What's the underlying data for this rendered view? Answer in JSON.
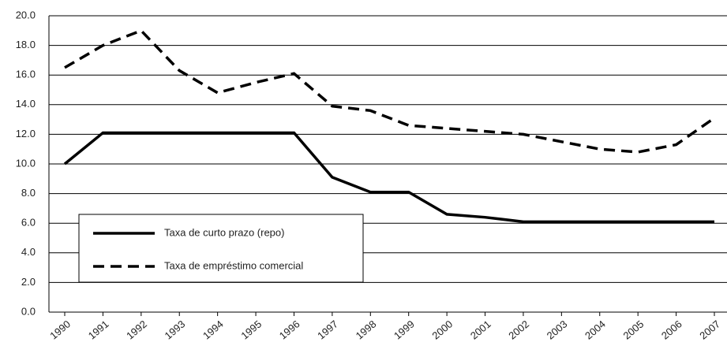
{
  "chart_data": {
    "type": "line",
    "categories": [
      "1990",
      "1991",
      "1992",
      "1993",
      "1994",
      "1995",
      "1996",
      "1997",
      "1998",
      "1999",
      "2000",
      "2001",
      "2002",
      "2003",
      "2004",
      "2005",
      "2006",
      "2007"
    ],
    "series": [
      {
        "name": "Taxa de curto prazo (repo)",
        "color": "#000000",
        "style": "solid",
        "values": [
          10.0,
          12.1,
          12.1,
          12.1,
          12.1,
          12.1,
          12.1,
          9.1,
          8.1,
          8.1,
          6.6,
          6.4,
          6.1,
          6.1,
          6.1,
          6.1,
          6.1,
          6.1
        ]
      },
      {
        "name": "Taxa de empréstimo comercial",
        "color": "#000000",
        "style": "dashed",
        "values": [
          16.5,
          18.0,
          19.0,
          16.3,
          14.8,
          15.5,
          16.1,
          13.9,
          13.6,
          12.6,
          12.4,
          12.2,
          12.0,
          11.5,
          11.0,
          10.8,
          11.3,
          13.1
        ]
      }
    ],
    "ylim": [
      0,
      20
    ],
    "yticks": [
      {
        "value": 0,
        "label": "0.0"
      },
      {
        "value": 2,
        "label": "2.0"
      },
      {
        "value": 4,
        "label": "4.0"
      },
      {
        "value": 6,
        "label": "6.0"
      },
      {
        "value": 8,
        "label": "8.0"
      },
      {
        "value": 10,
        "label": "10.0"
      },
      {
        "value": 12,
        "label": "12.0"
      },
      {
        "value": 14,
        "label": "14.0"
      },
      {
        "value": 16,
        "label": "16.0"
      },
      {
        "value": 18,
        "label": "18.0"
      },
      {
        "value": 20,
        "label": "20.0"
      }
    ],
    "grid": true
  }
}
